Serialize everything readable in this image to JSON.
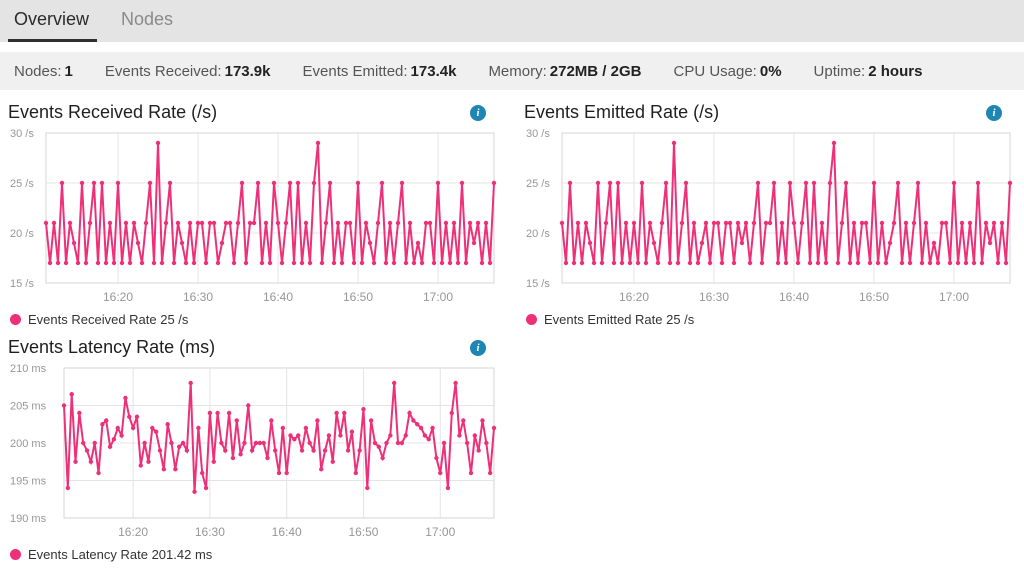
{
  "tabs": {
    "items": [
      {
        "label": "Overview",
        "active": true
      },
      {
        "label": "Nodes",
        "active": false
      }
    ]
  },
  "stats": {
    "items": [
      {
        "label": "Nodes:",
        "value": "1"
      },
      {
        "label": "Events Received:",
        "value": "173.9k"
      },
      {
        "label": "Events Emitted:",
        "value": "173.4k"
      },
      {
        "label": "Memory:",
        "value": "272MB / 2GB"
      },
      {
        "label": "CPU Usage:",
        "value": "0%"
      },
      {
        "label": "Uptime:",
        "value": "2 hours"
      }
    ]
  },
  "colors": {
    "accent_pink": "#ed3078",
    "info_blue": "#1e86b4",
    "grid": "#e4e4e4",
    "plot_border": "#d6d6d6",
    "tick_text": "#979797"
  },
  "icons": {
    "info": "i"
  },
  "chart_data": [
    {
      "type": "line",
      "title": "Events Received Rate (/s)",
      "legend": "Events Received Rate 25 /s",
      "unit": "/s",
      "ylim": [
        15,
        30
      ],
      "yticks": [
        15,
        20,
        25,
        30
      ],
      "x_start_min": 971,
      "x_step_min": 0.5,
      "xticks": [
        {
          "t": 980,
          "label": "16:20"
        },
        {
          "t": 990,
          "label": "16:30"
        },
        {
          "t": 1000,
          "label": "16:40"
        },
        {
          "t": 1010,
          "label": "16:50"
        },
        {
          "t": 1020,
          "label": "17:00"
        }
      ],
      "values": [
        21,
        17,
        21,
        17,
        25,
        17,
        21,
        19,
        17,
        25,
        17,
        21,
        25,
        17,
        25,
        17,
        21,
        17,
        25,
        17,
        21,
        17,
        21,
        19,
        17,
        21,
        25,
        17,
        29,
        17,
        21,
        25,
        17,
        21,
        19,
        17,
        21,
        17,
        21,
        21,
        17,
        21,
        21,
        17,
        19,
        21,
        21,
        17,
        21,
        25,
        17,
        21,
        21,
        25,
        17,
        21,
        17,
        25,
        21,
        17,
        21,
        25,
        17,
        25,
        17,
        21,
        17,
        25,
        29,
        17,
        21,
        25,
        17,
        21,
        17,
        21,
        21,
        17,
        25,
        17,
        21,
        19,
        17,
        21,
        25,
        17,
        21,
        17,
        21,
        25,
        17,
        21,
        17,
        19,
        17,
        21,
        21,
        17,
        25,
        17,
        21,
        17,
        21,
        17,
        25,
        17,
        21,
        19,
        21,
        17,
        21,
        17,
        25
      ]
    },
    {
      "type": "line",
      "title": "Events Emitted Rate (/s)",
      "legend": "Events Emitted Rate 25 /s",
      "unit": "/s",
      "ylim": [
        15,
        30
      ],
      "yticks": [
        15,
        20,
        25,
        30
      ],
      "x_start_min": 971,
      "x_step_min": 0.5,
      "xticks": [
        {
          "t": 980,
          "label": "16:20"
        },
        {
          "t": 990,
          "label": "16:30"
        },
        {
          "t": 1000,
          "label": "16:40"
        },
        {
          "t": 1010,
          "label": "16:50"
        },
        {
          "t": 1020,
          "label": "17:00"
        }
      ],
      "values": [
        21,
        17,
        25,
        17,
        21,
        17,
        21,
        19,
        17,
        25,
        17,
        21,
        25,
        17,
        25,
        17,
        21,
        17,
        21,
        17,
        25,
        17,
        21,
        19,
        17,
        21,
        25,
        17,
        29,
        17,
        21,
        25,
        17,
        21,
        17,
        19,
        21,
        17,
        21,
        21,
        17,
        21,
        21,
        17,
        21,
        19,
        21,
        17,
        21,
        25,
        17,
        21,
        21,
        25,
        17,
        21,
        17,
        25,
        21,
        17,
        21,
        25,
        17,
        25,
        17,
        21,
        17,
        25,
        29,
        17,
        21,
        25,
        17,
        21,
        17,
        21,
        21,
        17,
        25,
        17,
        21,
        17,
        19,
        21,
        25,
        17,
        21,
        17,
        21,
        25,
        17,
        21,
        17,
        19,
        17,
        21,
        21,
        17,
        25,
        17,
        21,
        17,
        21,
        17,
        25,
        17,
        21,
        19,
        21,
        17,
        21,
        17,
        25
      ]
    },
    {
      "type": "line",
      "title": "Events Latency Rate (ms)",
      "legend": "Events Latency Rate 201.42 ms",
      "unit": "ms",
      "ylim": [
        190,
        210
      ],
      "yticks": [
        190,
        195,
        200,
        205,
        210
      ],
      "x_start_min": 971,
      "x_step_min": 0.5,
      "xticks": [
        {
          "t": 980,
          "label": "16:20"
        },
        {
          "t": 990,
          "label": "16:30"
        },
        {
          "t": 1000,
          "label": "16:40"
        },
        {
          "t": 1010,
          "label": "16:50"
        },
        {
          "t": 1020,
          "label": "17:00"
        }
      ],
      "values": [
        205,
        194,
        206.5,
        197.5,
        204,
        200,
        199,
        197.5,
        200,
        196,
        202.5,
        203,
        199.5,
        200.5,
        202,
        201,
        206,
        203.5,
        202,
        203.5,
        197,
        200,
        197.5,
        202,
        201.5,
        199,
        196.5,
        202.5,
        200,
        196.5,
        199.5,
        200,
        199,
        208,
        193.5,
        202,
        196,
        194,
        204,
        197.5,
        204,
        200,
        199,
        204,
        198,
        203,
        198.5,
        200,
        205,
        199,
        200,
        200,
        200,
        198,
        203,
        199,
        196,
        202,
        196,
        201,
        200.5,
        201,
        199,
        202,
        200,
        199,
        203,
        196.5,
        199,
        201,
        197.5,
        204,
        201,
        204,
        199,
        201.5,
        196,
        199,
        204.5,
        194,
        203,
        200,
        199.5,
        198,
        200,
        201,
        208,
        200,
        200,
        201,
        204,
        203,
        202.5,
        202,
        201,
        200.5,
        202,
        198,
        196,
        200,
        194,
        204,
        208,
        201,
        203,
        200,
        196,
        201,
        199,
        203,
        200,
        196,
        202
      ]
    }
  ]
}
